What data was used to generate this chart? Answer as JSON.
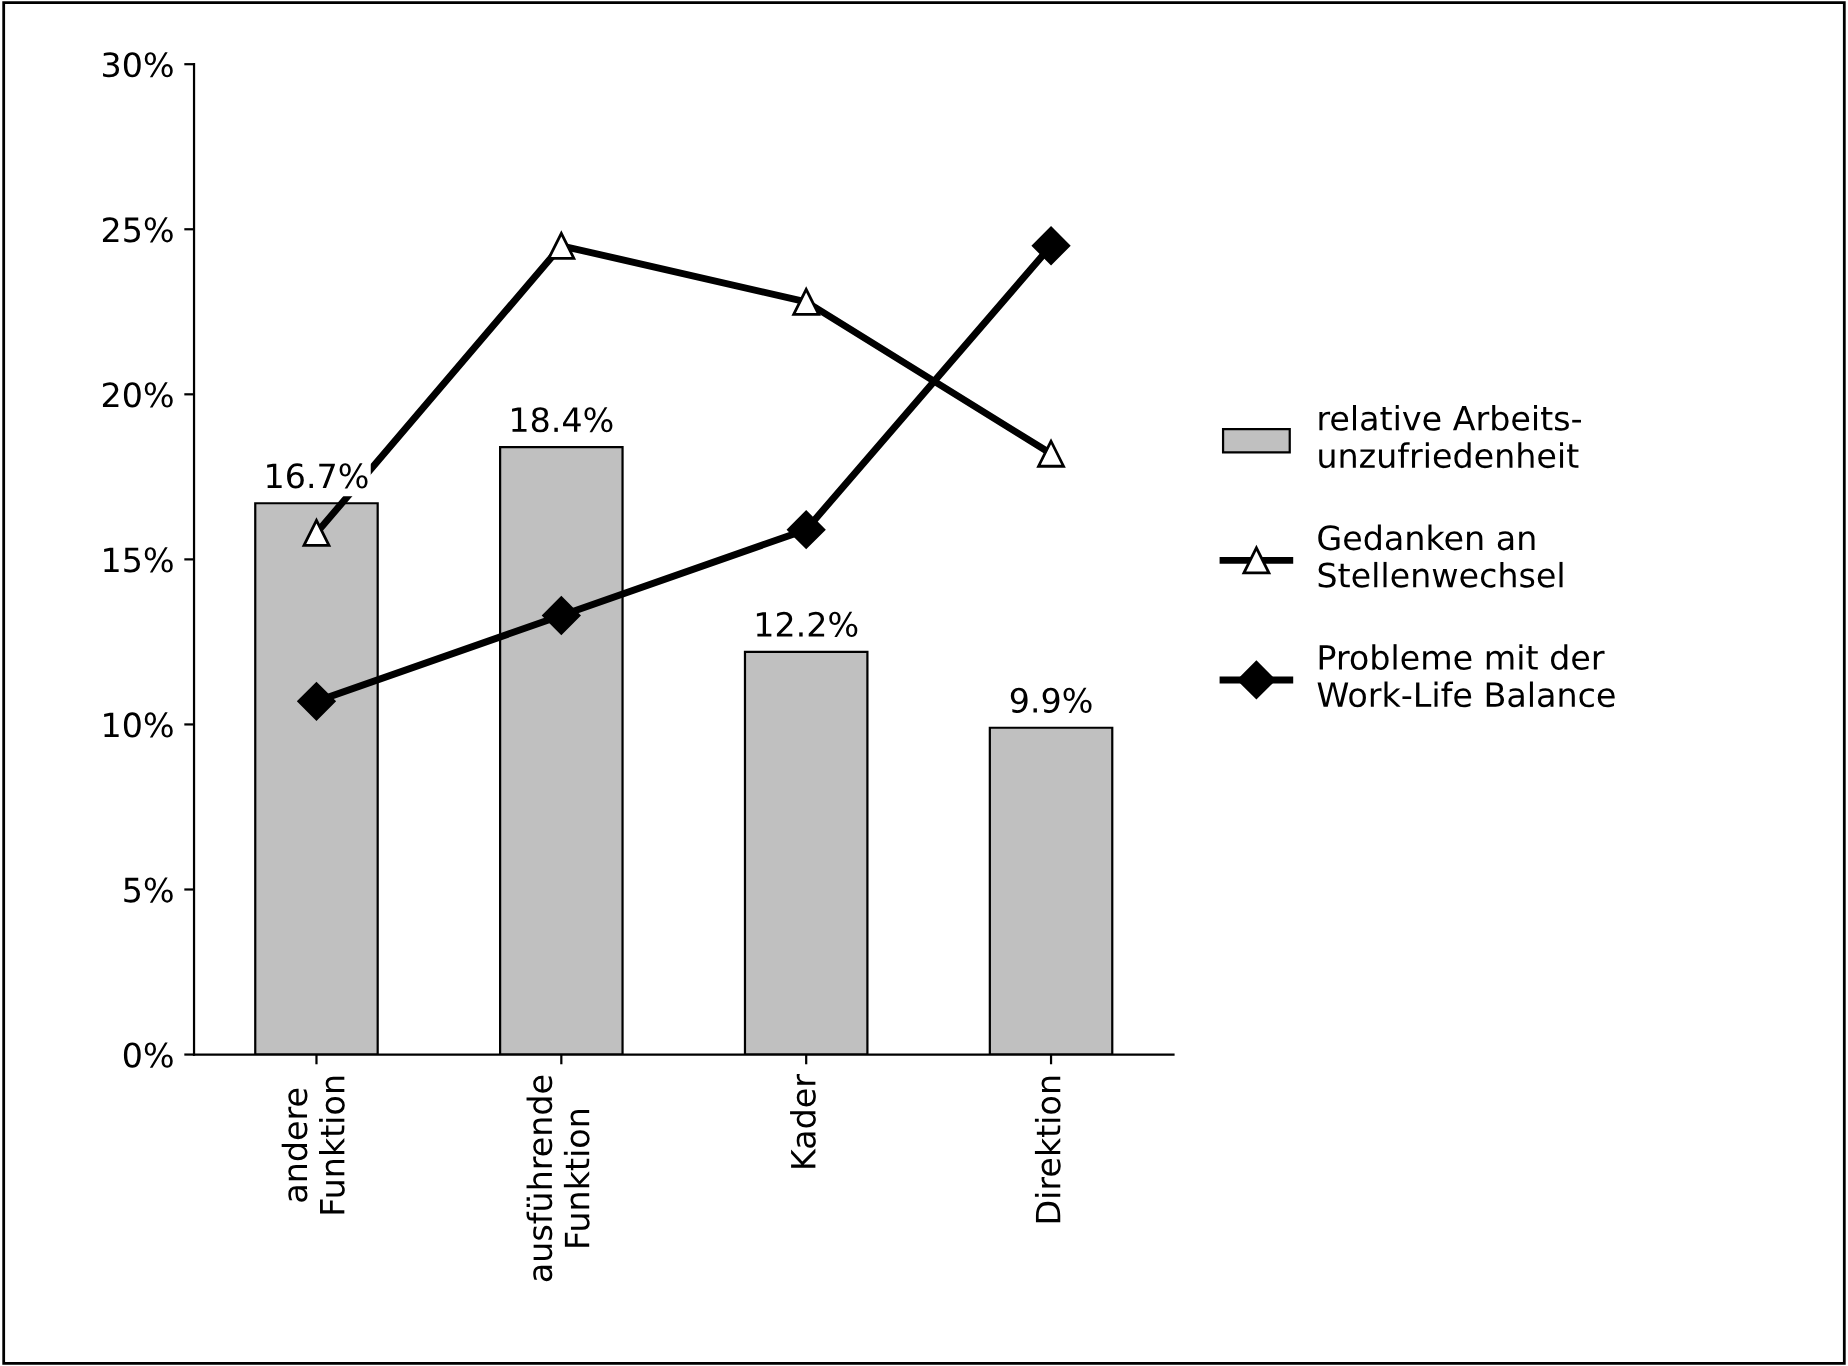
{
  "chart_data": {
    "type": "bar",
    "categories": [
      "andere\nFunktion",
      "ausführende\nFunktion",
      "Kader",
      "Direktion"
    ],
    "series": [
      {
        "name": "relative Arbeits-\nunzufriedenheit",
        "color": "#c0c0c0",
        "values": [
          16.7,
          18.4,
          12.2,
          9.9
        ],
        "value_labels": [
          "16.7%",
          "18.4%",
          "12.2%",
          "9.9%"
        ]
      },
      {
        "name": "Gedanken an\nStellenwechsel",
        "type": "line",
        "color": "#000000",
        "marker": "triangle",
        "values": [
          15.8,
          24.5,
          22.8,
          18.2
        ]
      },
      {
        "name": "Probleme mit der\nWork-Life Balance",
        "type": "line",
        "color": "#000000",
        "marker": "diamond",
        "values": [
          10.7,
          13.3,
          15.9,
          24.5
        ]
      }
    ],
    "ylim": [
      0,
      30
    ],
    "yticks": [
      {
        "value": 0,
        "label": "0%"
      },
      {
        "value": 5,
        "label": "5%"
      },
      {
        "value": 10,
        "label": "10%"
      },
      {
        "value": 15,
        "label": "15%"
      },
      {
        "value": 20,
        "label": "20%"
      },
      {
        "value": 25,
        "label": "25%"
      },
      {
        "value": 30,
        "label": "30%"
      }
    ],
    "grid": false,
    "legend": "right"
  }
}
